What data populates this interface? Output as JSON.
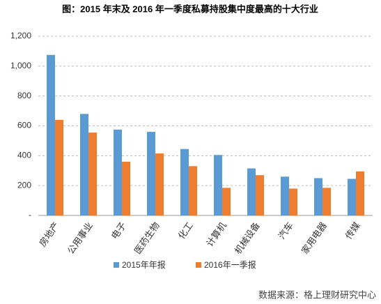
{
  "chart_data": {
    "type": "bar",
    "title": "图：2015 年末及 2016 年一季度私募持股集中度最高的十大行业",
    "source": "数据来源：格上理财研究中心",
    "categories": [
      "房地产",
      "公用事业",
      "电子",
      "医药生物",
      "化工",
      "计算机",
      "机械设备",
      "汽车",
      "家用电器",
      "传媒"
    ],
    "series": [
      {
        "name": "2015年年报",
        "color": "#5b9bd5",
        "values": [
          1075,
          680,
          575,
          560,
          445,
          405,
          315,
          260,
          250,
          245
        ]
      },
      {
        "name": "2016年一季报",
        "color": "#ed7d31",
        "values": [
          640,
          555,
          360,
          415,
          330,
          185,
          270,
          180,
          185,
          295
        ]
      }
    ],
    "ylim": [
      0,
      1200
    ],
    "yticks": [
      {
        "value": 0,
        "label": "-"
      },
      200,
      400,
      600,
      800,
      {
        "value": 1000,
        "label": "1,000"
      },
      {
        "value": 1200,
        "label": "1,200"
      }
    ],
    "grid": true
  }
}
